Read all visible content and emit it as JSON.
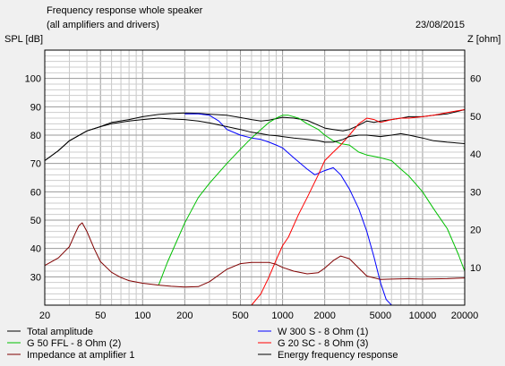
{
  "chart_data": {
    "type": "line",
    "title": "Frequency response whole speaker",
    "subtitle": "(all amplifiers and drivers)",
    "date": "23/08/2015",
    "ylabel_left": "SPL [dB]",
    "ylabel_right": "Z [ohm]",
    "x_scale": "log",
    "xlim": [
      20,
      20000
    ],
    "ylim_left": [
      20,
      110
    ],
    "ylim_right": [
      0,
      67.5
    ],
    "grid": true,
    "x_ticks": [
      20,
      50,
      100,
      200,
      500,
      1000,
      2000,
      5000,
      10000,
      20000
    ],
    "x_tick_labels": [
      "20",
      "50",
      "100",
      "200",
      "500",
      "1000",
      "2000",
      "5000",
      "10000",
      "20000"
    ],
    "y_left_ticks": [
      30,
      40,
      50,
      60,
      70,
      80,
      90,
      100
    ],
    "y_left_tick_labels": [
      "30",
      "40",
      "50",
      "60",
      "70",
      "80",
      "90",
      "100"
    ],
    "y_right_ticks": [
      10,
      20,
      30,
      40,
      50,
      60
    ],
    "y_right_tick_labels": [
      "10",
      "20",
      "30",
      "40",
      "50",
      "60"
    ],
    "series": [
      {
        "name": "Total amplitude",
        "color": "#000000",
        "axis": "left",
        "x": [
          20,
          25,
          30,
          40,
          50,
          60,
          80,
          100,
          130,
          160,
          200,
          250,
          300,
          400,
          500,
          600,
          700,
          800,
          900,
          1000,
          1200,
          1500,
          1800,
          2000,
          2300,
          2700,
          3000,
          3500,
          4000,
          4500,
          5000,
          6000,
          7000,
          8000,
          10000,
          12000,
          15000,
          20000
        ],
        "y": [
          71,
          74.5,
          78,
          81.5,
          83,
          84.5,
          85.5,
          86.5,
          87.3,
          87.6,
          87.8,
          87.7,
          87.4,
          87,
          86.2,
          85.5,
          85,
          85.3,
          85.8,
          86.3,
          86,
          85.2,
          83.5,
          82.5,
          82,
          81.5,
          82,
          83.5,
          85,
          84.5,
          85,
          85.5,
          86,
          86.5,
          86.5,
          87,
          87.5,
          89
        ]
      },
      {
        "name": "W 300 S - 8 Ohm (1)",
        "color": "#0000ff",
        "axis": "left",
        "x": [
          200,
          250,
          300,
          350,
          400,
          500,
          600,
          700,
          800,
          900,
          1000,
          1200,
          1500,
          1700,
          2000,
          2300,
          2600,
          3000,
          3500,
          4000,
          4500,
          5000,
          5500,
          6000,
          7000,
          8000
        ],
        "y": [
          87.5,
          87.5,
          87,
          85,
          82,
          80,
          79,
          78.5,
          77.5,
          76.5,
          75.5,
          72,
          68,
          66,
          67.5,
          68.5,
          66,
          61,
          54,
          46,
          37,
          28,
          22,
          20,
          19.5,
          19.5
        ]
      },
      {
        "name": "G 50 FFL - 8 Ohm (2)",
        "color": "#00c000",
        "axis": "left",
        "x": [
          130,
          150,
          200,
          250,
          300,
          400,
          500,
          600,
          700,
          800,
          900,
          1000,
          1100,
          1300,
          1500,
          1800,
          2000,
          2300,
          2600,
          3000,
          3500,
          4000,
          4500,
          5000,
          6000,
          7000,
          8000,
          10000,
          12000,
          15000,
          18000,
          20000
        ],
        "y": [
          27,
          35,
          49,
          58,
          63,
          70,
          75,
          79,
          82,
          84.5,
          86,
          87,
          87,
          86,
          84,
          82,
          80,
          78,
          77,
          76.5,
          74,
          73,
          72.5,
          72,
          71,
          68,
          65.5,
          60,
          54,
          47,
          38,
          32
        ]
      },
      {
        "name": "G 20 SC - 8 Ohm (3)",
        "color": "#ff0000",
        "axis": "left",
        "x": [
          600,
          700,
          800,
          900,
          1000,
          1100,
          1300,
          1500,
          1800,
          2000,
          2300,
          2600,
          3000,
          3500,
          4000,
          4500,
          5000,
          6000,
          7000,
          8000,
          10000,
          12000,
          15000,
          20000
        ],
        "y": [
          20,
          24,
          30,
          36,
          41,
          44,
          52,
          58,
          66,
          71,
          74,
          76.5,
          80,
          84,
          86,
          85.5,
          84.5,
          85.5,
          86,
          86,
          86.5,
          87,
          88,
          89
        ]
      },
      {
        "name": "Impedance at amplifier 1",
        "color": "#800000",
        "axis": "right",
        "x": [
          20,
          25,
          30,
          33,
          35,
          37,
          40,
          45,
          50,
          60,
          70,
          80,
          100,
          130,
          160,
          200,
          250,
          300,
          400,
          500,
          600,
          700,
          800,
          900,
          1000,
          1200,
          1500,
          1800,
          2000,
          2300,
          2600,
          3000,
          3500,
          4000,
          5000,
          6000,
          8000,
          10000,
          15000,
          20000
        ],
        "y": [
          10.5,
          12.5,
          15.5,
          19,
          21,
          21.8,
          19.5,
          15,
          11.5,
          8.7,
          7.3,
          6.5,
          5.8,
          5.3,
          5,
          4.8,
          4.9,
          6.2,
          9.5,
          11,
          11.3,
          11.3,
          11.3,
          10.8,
          10,
          9,
          8.3,
          8.6,
          9.8,
          11.8,
          13,
          12.3,
          9.8,
          7.7,
          6.8,
          6.9,
          7,
          6.9,
          7,
          7.2
        ]
      },
      {
        "name": "Energy frequency response",
        "color": "#000000",
        "axis": "left",
        "x": [
          20,
          25,
          30,
          40,
          50,
          60,
          80,
          100,
          130,
          160,
          200,
          250,
          300,
          400,
          500,
          600,
          700,
          800,
          900,
          1000,
          1200,
          1500,
          1800,
          2000,
          2300,
          2700,
          3000,
          3500,
          4000,
          5000,
          6000,
          7000,
          8000,
          10000,
          12000,
          15000,
          20000
        ],
        "y": [
          71,
          74.5,
          78,
          81.5,
          83,
          84,
          85,
          85.5,
          86,
          85.7,
          85.5,
          85,
          84.3,
          83,
          82,
          81,
          80.5,
          80,
          79.8,
          79.5,
          79,
          78.5,
          78,
          77.5,
          77.5,
          78.5,
          79.5,
          80,
          80,
          79.5,
          80,
          80.5,
          80,
          79,
          78,
          77.5,
          77
        ]
      }
    ]
  },
  "legend": [
    {
      "label": "Total amplitude",
      "color": "#000000"
    },
    {
      "label": "W 300 S - 8 Ohm (1)",
      "color": "#0000ff"
    },
    {
      "label": "G 50 FFL - 8 Ohm (2)",
      "color": "#00c000"
    },
    {
      "label": "G 20 SC - 8 Ohm (3)",
      "color": "#ff0000"
    },
    {
      "label": "Impedance at amplifier 1",
      "color": "#800000"
    },
    {
      "label": "Energy frequency response",
      "color": "#000000"
    }
  ]
}
